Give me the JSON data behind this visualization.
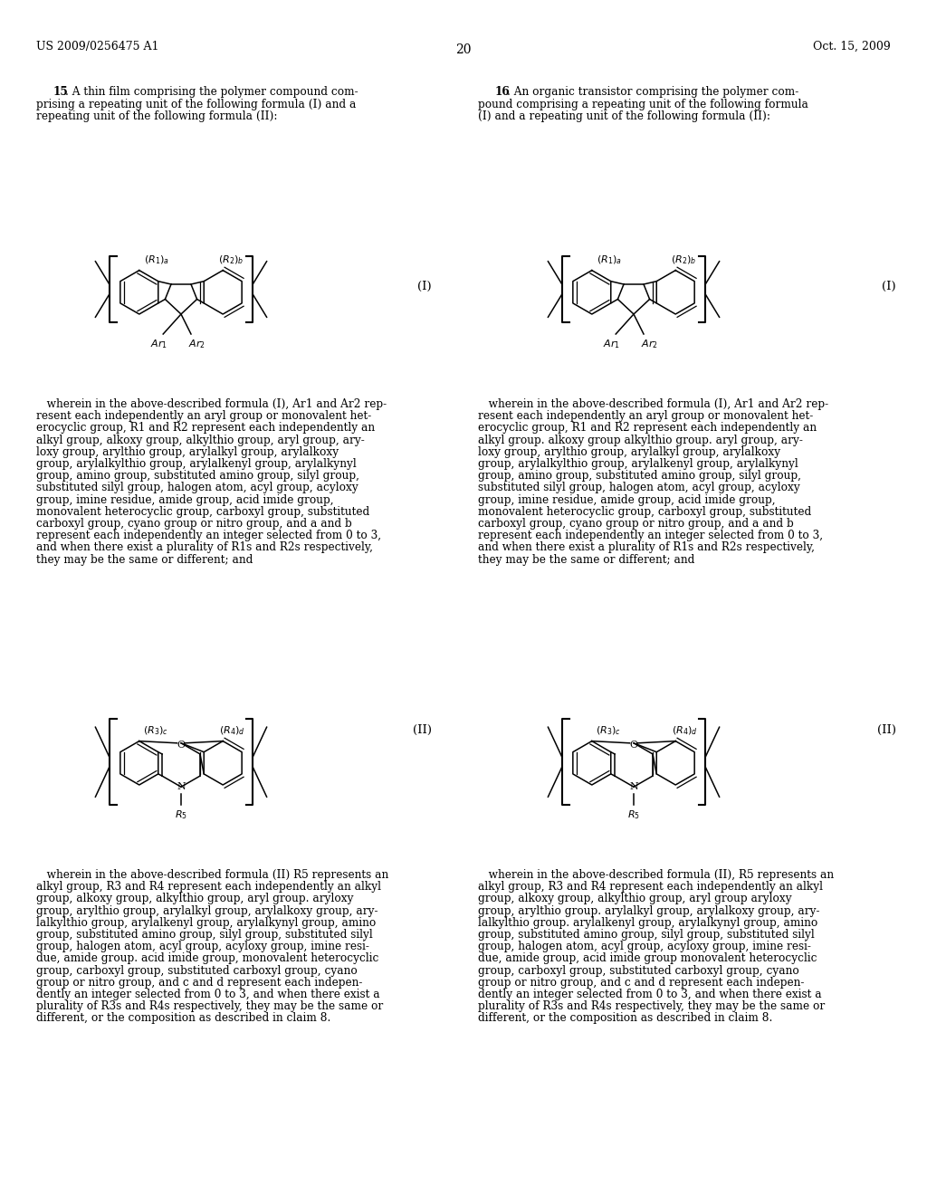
{
  "background_color": "#ffffff",
  "header_left": "US 2009/0256475 A1",
  "header_right": "Oct. 15, 2009",
  "page_number": "20",
  "claim15_lines": [
    "   15. A thin film comprising the polymer compound com-",
    "prising a repeating unit of the following formula (I) and a",
    "repeating unit of the following formula (II):"
  ],
  "claim16_lines": [
    "   16. An organic transistor comprising the polymer com-",
    "pound comprising a repeating unit of the following formula",
    "(I) and a repeating unit of the following formula (II):"
  ],
  "body_left_1": [
    "   wherein in the above-described formula (I), Ar1 and Ar2 rep-",
    "resent each independently an aryl group or monovalent het-",
    "erocyclic group, R1 and R2 represent each independently an",
    "alkyl group, alkoxy group, alkylthio group, aryl group, ary-",
    "loxy group, arylthio group, arylalkyl group, arylalkoxy",
    "group, arylalkylthio group, arylalkenyl group, arylalkynyl",
    "group, amino group, substituted amino group, silyl group,",
    "substituted silyl group, halogen atom, acyl group, acyloxy",
    "group, imine residue, amide group, acid imide group,",
    "monovalent heterocyclic group, carboxyl group, substituted",
    "carboxyl group, cyano group or nitro group, and a and b",
    "represent each independently an integer selected from 0 to 3,",
    "and when there exist a plurality of R1s and R2s respectively,",
    "they may be the same or different; and"
  ],
  "body_right_1": [
    "   wherein in the above-described formula (I), Ar1 and Ar2 rep-",
    "resent each independently an aryl group or monovalent het-",
    "erocyclic group, R1 and R2 represent each independently an",
    "alkyl group. alkoxy group alkylthio group. aryl group, ary-",
    "loxy group, arylthio group, arylalkyl group, arylalkoxy",
    "group, arylalkylthio group, arylalkenyl group, arylalkynyl",
    "group, amino group, substituted amino group, silyl group,",
    "substituted silyl group, halogen atom, acyl group, acyloxy",
    "group, imine residue, amide group, acid imide group,",
    "monovalent heterocyclic group, carboxyl group, substituted",
    "carboxyl group, cyano group or nitro group, and a and b",
    "represent each independently an integer selected from 0 to 3,",
    "and when there exist a plurality of R1s and R2s respectively,",
    "they may be the same or different; and"
  ],
  "body_left_2": [
    "   wherein in the above-described formula (II) R5 represents an",
    "alkyl group, R3 and R4 represent each independently an alkyl",
    "group, alkoxy group, alkylthio group, aryl group. aryloxy",
    "group, arylthio group, arylalkyl group, arylalkoxy group, ary-",
    "lalkylthio group, arylalkenyl group, arylalkynyl group, amino",
    "group, substituted amino group, silyl group, substituted silyl",
    "group, halogen atom, acyl group, acyloxy group, imine resi-",
    "due, amide group. acid imide group, monovalent heterocyclic",
    "group, carboxyl group, substituted carboxyl group, cyano",
    "group or nitro group, and c and d represent each indepen-",
    "dently an integer selected from 0 to 3, and when there exist a",
    "plurality of R3s and R4s respectively, they may be the same or",
    "different, or the composition as described in claim 8."
  ],
  "body_right_2": [
    "   wherein in the above-described formula (II), R5 represents an",
    "alkyl group, R3 and R4 represent each independently an alkyl",
    "group, alkoxy group, alkylthio group, aryl group aryloxy",
    "group, arylthio group. arylalkyl group, arylalkoxy group, ary-",
    "lalkylthio group. arylalkenyl group, arylalkynyl group, amino",
    "group, substituted amino group, silyl group, substituted silyl",
    "group, halogen atom, acyl group, acyloxy group, imine resi-",
    "due, amide group, acid imide group monovalent heterocyclic",
    "group, carboxyl group, substituted carboxyl group, cyano",
    "group or nitro group, and c and d represent each indepen-",
    "dently an integer selected from 0 to 3, and when there exist a",
    "plurality of R3s and R4s respectively, they may be the same or",
    "different, or the composition as described in claim 8."
  ]
}
